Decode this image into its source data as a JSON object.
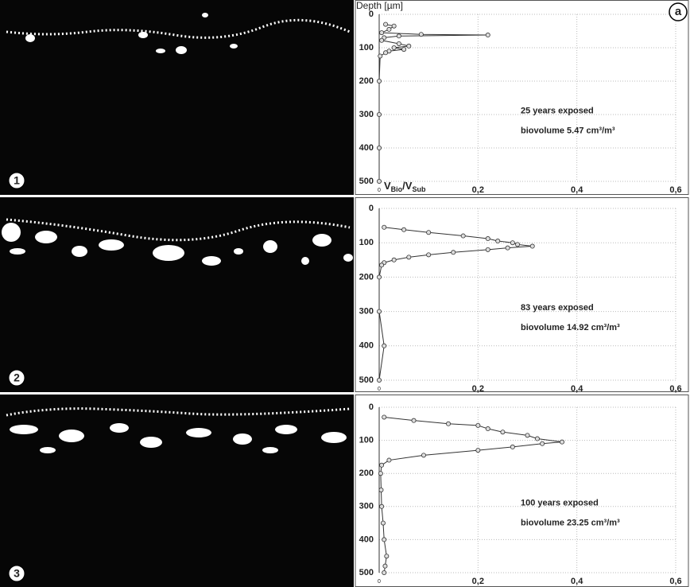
{
  "figure_label": "a",
  "panels": [
    "1",
    "2",
    "3"
  ],
  "chart_data": [
    {
      "type": "line",
      "ylabel": "Depth [µm]",
      "xlabel": [
        "V",
        "Bio",
        "/V",
        "Sub"
      ],
      "annotations": [
        "25 years exposed",
        "biovolume 5.47 cm³/m³"
      ],
      "xlim": [
        0,
        0.6
      ],
      "xticks": [
        0,
        {
          "value": 0.2,
          "label": "0,2"
        },
        {
          "value": 0.4,
          "label": "0,4"
        },
        {
          "value": 0.6,
          "label": "0,6"
        }
      ],
      "ylim": [
        0,
        500
      ],
      "yticks": [
        0,
        100,
        200,
        300,
        400,
        500
      ],
      "grid": true,
      "series": [
        {
          "color": "#333",
          "depth": [
            30,
            35,
            45,
            55,
            60,
            62,
            65,
            70,
            78,
            88,
            95,
            100,
            105,
            110,
            115,
            125,
            200,
            300,
            400,
            500
          ],
          "values": [
            0.013,
            0.03,
            0.02,
            0.005,
            0.085,
            0.22,
            0.04,
            0.01,
            0.005,
            0.04,
            0.06,
            0.03,
            0.05,
            0.02,
            0.013,
            0.002,
            0,
            0,
            0,
            0
          ]
        }
      ]
    },
    {
      "type": "line",
      "annotations": [
        "83 years exposed",
        "biovolume 14.92 cm³/m³"
      ],
      "xlim": [
        0,
        0.6
      ],
      "xticks": [
        0,
        {
          "value": 0.2,
          "label": "0,2"
        },
        {
          "value": 0.4,
          "label": "0,4"
        },
        {
          "value": 0.6,
          "label": "0,6"
        }
      ],
      "ylim": [
        0,
        500
      ],
      "yticks": [
        0,
        100,
        200,
        300,
        400,
        500
      ],
      "grid": true,
      "series": [
        {
          "color": "#333",
          "depth": [
            55,
            62,
            70,
            80,
            88,
            95,
            100,
            105,
            110,
            115,
            120,
            128,
            135,
            142,
            150,
            158,
            165,
            200,
            300,
            400,
            500
          ],
          "values": [
            0.01,
            0.05,
            0.1,
            0.17,
            0.22,
            0.24,
            0.27,
            0.28,
            0.31,
            0.26,
            0.22,
            0.15,
            0.1,
            0.06,
            0.03,
            0.01,
            0.005,
            0,
            0,
            0.01,
            0
          ]
        }
      ]
    },
    {
      "type": "line",
      "annotations": [
        "100 years exposed",
        "biovolume 23.25 cm³/m³"
      ],
      "xlim": [
        0,
        0.6
      ],
      "xticks": [
        0,
        {
          "value": 0.2,
          "label": "0,2"
        },
        {
          "value": 0.4,
          "label": "0,4"
        },
        {
          "value": 0.6,
          "label": "0,6"
        }
      ],
      "ylim": [
        0,
        500
      ],
      "yticks": [
        0,
        100,
        200,
        300,
        400,
        500
      ],
      "grid": true,
      "series": [
        {
          "color": "#333",
          "depth": [
            30,
            40,
            50,
            55,
            65,
            75,
            85,
            95,
            105,
            110,
            120,
            130,
            145,
            160,
            175,
            200,
            250,
            300,
            350,
            400,
            450,
            480,
            500
          ],
          "values": [
            0.01,
            0.07,
            0.14,
            0.2,
            0.22,
            0.25,
            0.3,
            0.32,
            0.37,
            0.33,
            0.27,
            0.2,
            0.09,
            0.02,
            0.005,
            0.003,
            0.004,
            0.005,
            0.008,
            0.01,
            0.015,
            0.012,
            0.01
          ]
        }
      ]
    }
  ]
}
